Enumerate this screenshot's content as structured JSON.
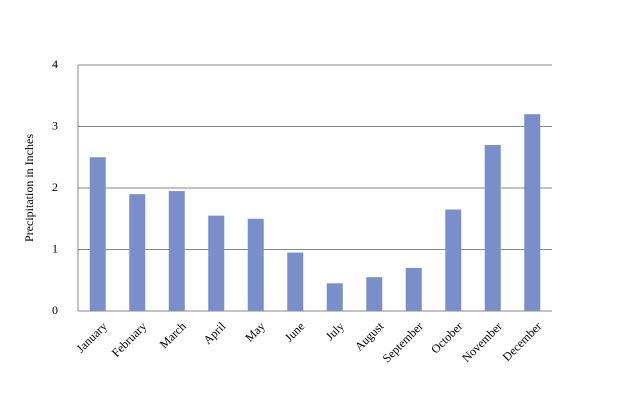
{
  "chart_data": {
    "type": "bar",
    "y_label": "Precipitation in Inches",
    "categories": [
      "January",
      "February",
      "March",
      "April",
      "May",
      "June",
      "July",
      "August",
      "September",
      "October",
      "November",
      "December"
    ],
    "values": [
      2.5,
      1.9,
      1.95,
      1.55,
      1.5,
      0.95,
      0.45,
      0.55,
      0.7,
      1.65,
      2.7,
      3.2
    ],
    "color": "#7a8fc9",
    "ylim": [
      0,
      4
    ],
    "yticks": [
      0,
      1,
      2,
      3,
      4
    ],
    "grid": true
  }
}
